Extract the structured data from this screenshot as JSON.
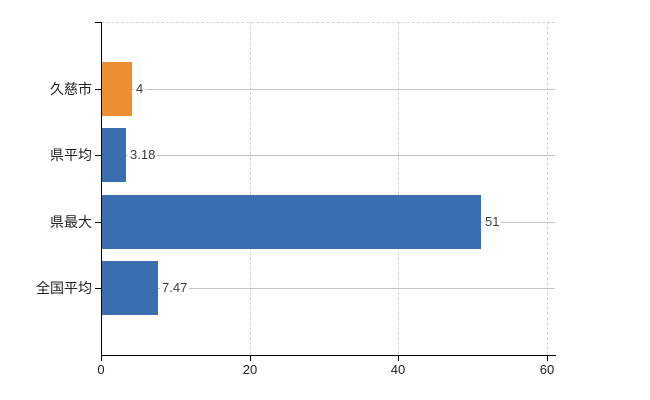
{
  "chart_data": {
    "type": "bar",
    "orientation": "horizontal",
    "title": "",
    "categories": [
      "久慈市",
      "県平均",
      "県最大",
      "全国平均"
    ],
    "values": [
      4,
      3.18,
      51,
      7.47
    ],
    "value_labels": [
      "4",
      "3.18",
      "51",
      "7.47"
    ],
    "bar_colors": [
      "#ee8e33",
      "#3a6eb0",
      "#3a6eb0",
      "#3a6eb0"
    ],
    "xtick_labels": [
      "0",
      "20",
      "40",
      "60"
    ],
    "xtick_values": [
      0,
      20,
      40,
      60
    ],
    "xlim": [
      0,
      61.1
    ],
    "ylabel": "",
    "xlabel": "",
    "legend": "none",
    "grid": {
      "vertical_lines": "dashed at 20/40/60 and dashed top border",
      "horizontal_lines": "solid light line at each category center"
    }
  },
  "colors": {
    "background": "#ffffff",
    "axis": "#000000",
    "grid_dashed": "#d2d2d2",
    "grid_solid": "#c6c6c6",
    "value_text": "#3c3c3c",
    "label_text": "#222222",
    "bar_orange": "#ee8e33",
    "bar_blue": "#3a6eb0"
  }
}
